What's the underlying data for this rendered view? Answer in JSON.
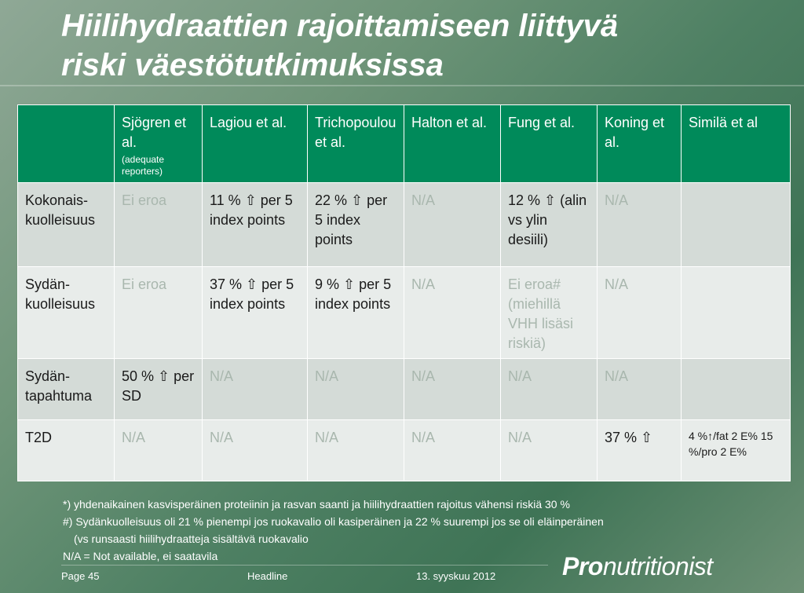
{
  "slide": {
    "title_line1": "Hiilihydraattien rajoittamiseen liittyvä",
    "title_line2": "riski väestötutkimuksissa"
  },
  "table": {
    "headers": [
      {
        "label": "",
        "sub": ""
      },
      {
        "label": "Sjögren et al.",
        "sub": "(adequate reporters)"
      },
      {
        "label": "Lagiou et al.",
        "sub": ""
      },
      {
        "label": "Trichopoulou et al.",
        "sub": ""
      },
      {
        "label": "Halton et al.",
        "sub": ""
      },
      {
        "label": "Fung et al.",
        "sub": ""
      },
      {
        "label": "Koning et al.",
        "sub": ""
      },
      {
        "label": "Similä et al",
        "sub": ""
      }
    ],
    "rows": [
      {
        "label": "Kokonais-kuolleisuus",
        "cells": [
          {
            "text": "Ei eroa",
            "style": "faded"
          },
          {
            "text": "11 % ⇧ per 5 index points",
            "style": "dark"
          },
          {
            "text": "22 % ⇧ per 5 index points",
            "style": "dark"
          },
          {
            "text": "N/A",
            "style": "faded"
          },
          {
            "text": "12 % ⇧ (alin vs ylin desiili)",
            "style": "dark"
          },
          {
            "text": "N/A",
            "style": "faded"
          },
          {
            "text": "",
            "style": "dark"
          }
        ]
      },
      {
        "label": "Sydän-kuolleisuus",
        "cells": [
          {
            "text": "Ei eroa",
            "style": "faded"
          },
          {
            "text": "37 % ⇧ per 5 index points",
            "style": "dark"
          },
          {
            "text": "9 % ⇧ per 5 index points",
            "style": "dark"
          },
          {
            "text": "N/A",
            "style": "faded"
          },
          {
            "text": "Ei eroa# (miehillä VHH lisäsi riskiä)",
            "style": "faded"
          },
          {
            "text": "N/A",
            "style": "faded"
          },
          {
            "text": "",
            "style": "dark"
          }
        ]
      },
      {
        "label": "Sydän-tapahtuma",
        "cells": [
          {
            "text": "50 % ⇧ per SD",
            "style": "dark"
          },
          {
            "text": "N/A",
            "style": "faded"
          },
          {
            "text": "N/A",
            "style": "faded"
          },
          {
            "text": "N/A",
            "style": "faded"
          },
          {
            "text": "N/A",
            "style": "faded"
          },
          {
            "text": "N/A",
            "style": "faded"
          },
          {
            "text": "",
            "style": "dark"
          }
        ]
      },
      {
        "label": "T2D",
        "cells": [
          {
            "text": "N/A",
            "style": "faded"
          },
          {
            "text": "N/A",
            "style": "faded"
          },
          {
            "text": "N/A",
            "style": "faded"
          },
          {
            "text": "N/A",
            "style": "faded"
          },
          {
            "text": "N/A",
            "style": "faded"
          },
          {
            "text": "37 % ⇧",
            "style": "dark"
          },
          {
            "text": "4 %↑/fat 2 E% 15 %/pro 2 E%",
            "style": "dark small"
          }
        ]
      }
    ]
  },
  "footnotes": {
    "line1": "*)  yhdenaikainen kasvisperäinen proteiinin ja rasvan saanti ja hiilihydraattien rajoitus vähensi riskiä 30 %",
    "line2": "#) Sydänkuolleisuus oli 21 % pienempi jos ruokavalio oli kasiperäinen ja 22 % suurempi jos se oli eläinperäinen",
    "line3": "(vs runsaasti hiilihydraatteja sisältävä ruokavalio",
    "line4": "N/A = Not available, ei saatavila"
  },
  "footer": {
    "page": "Page 45",
    "center": "Headline",
    "date": "13. syyskuu 2012",
    "logo_bold": "Pro",
    "logo_rest": "nutritionist"
  },
  "colors": {
    "header_green": "#008a5a",
    "row_dark": "#d4dbd7",
    "row_light": "#e8ecea",
    "faded_text": "#a9b7ae"
  }
}
